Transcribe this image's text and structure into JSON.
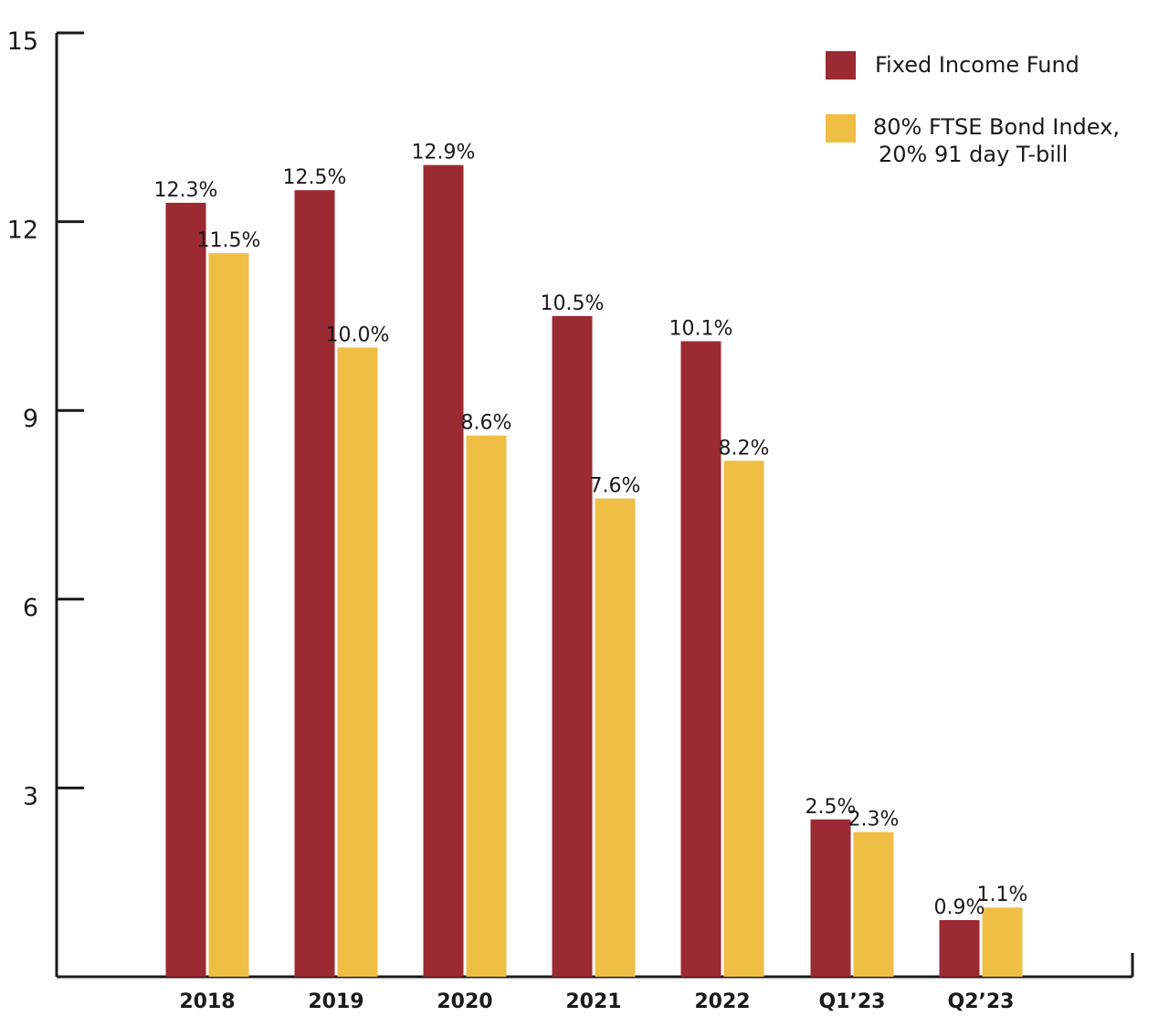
{
  "chart_data": {
    "type": "bar",
    "categories": [
      "2018",
      "2019",
      "2020",
      "2021",
      "2022",
      "Q1’23",
      "Q2’23"
    ],
    "series": [
      {
        "name": "Fixed Income Fund",
        "values": [
          12.3,
          12.5,
          12.9,
          10.5,
          10.1,
          2.5,
          0.9
        ],
        "labels": [
          "12.3%",
          "12.5%",
          "12.9%",
          "10.5%",
          "10.1%",
          "2.5%",
          "0.9%"
        ],
        "color": "#9b2a33"
      },
      {
        "name": "80% FTSE Bond Index,\n 20% 91 day T-bill",
        "name_lines": [
          "80% FTSE Bond Index,",
          "20% 91 day T-bill"
        ],
        "values": [
          11.5,
          10.0,
          8.6,
          7.6,
          8.2,
          2.3,
          1.1
        ],
        "labels": [
          "11.5%",
          "10.0%",
          "8.6%",
          "7.6%",
          "8.2%",
          "2.3%",
          "1.1%"
        ],
        "color": "#efbe45"
      }
    ],
    "yticks": [
      "3",
      "6",
      "9",
      "12",
      "15"
    ],
    "ylim": [
      0,
      15
    ],
    "grid": false,
    "legend_position": "top-right",
    "title": "",
    "xlabel": "",
    "ylabel": ""
  }
}
